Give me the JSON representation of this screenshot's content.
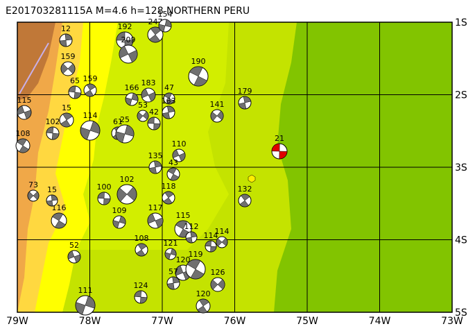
{
  "title": "E201703281115A  M=4.6 h=128  NORTHERN PERU",
  "lon_labels": [
    "79W",
    "78W",
    "77W",
    "76W",
    "75W",
    "74W",
    "73W"
  ],
  "lat_labels": [
    "1S",
    "2S",
    "3S",
    "4S",
    "5S"
  ],
  "events": [
    {
      "label": "192"
    },
    {
      "label": "247"
    },
    {
      "label": "154"
    },
    {
      "label": "209"
    },
    {
      "label": "190"
    },
    {
      "label": "179"
    },
    {
      "label": "141"
    },
    {
      "label": "21"
    },
    {
      "label": "132"
    },
    {
      "label": "166"
    },
    {
      "label": "183"
    },
    {
      "label": "47"
    },
    {
      "label": "163"
    },
    {
      "label": "53"
    },
    {
      "label": "42"
    },
    {
      "label": "61"
    },
    {
      "label": "25"
    },
    {
      "label": "110"
    },
    {
      "label": "43"
    },
    {
      "label": "135"
    },
    {
      "label": "102"
    },
    {
      "label": "100"
    },
    {
      "label": "118"
    },
    {
      "label": "109"
    },
    {
      "label": "117"
    },
    {
      "label": "115"
    },
    {
      "label": "112"
    },
    {
      "label": "114"
    },
    {
      "label": "114"
    },
    {
      "label": "108"
    },
    {
      "label": "121"
    },
    {
      "label": "120"
    },
    {
      "label": "119"
    },
    {
      "label": "57"
    },
    {
      "label": "126"
    },
    {
      "label": "124"
    },
    {
      "label": "120"
    },
    {
      "label": "111"
    },
    {
      "label": "52"
    },
    {
      "label": "116"
    },
    {
      "label": "15"
    },
    {
      "label": "73"
    },
    {
      "label": "102"
    },
    {
      "label": "15"
    },
    {
      "label": "114"
    },
    {
      "label": "115"
    },
    {
      "label": "108"
    },
    {
      "label": "12"
    },
    {
      "label": "159"
    },
    {
      "label": "65"
    },
    {
      "label": "159"
    }
  ]
}
